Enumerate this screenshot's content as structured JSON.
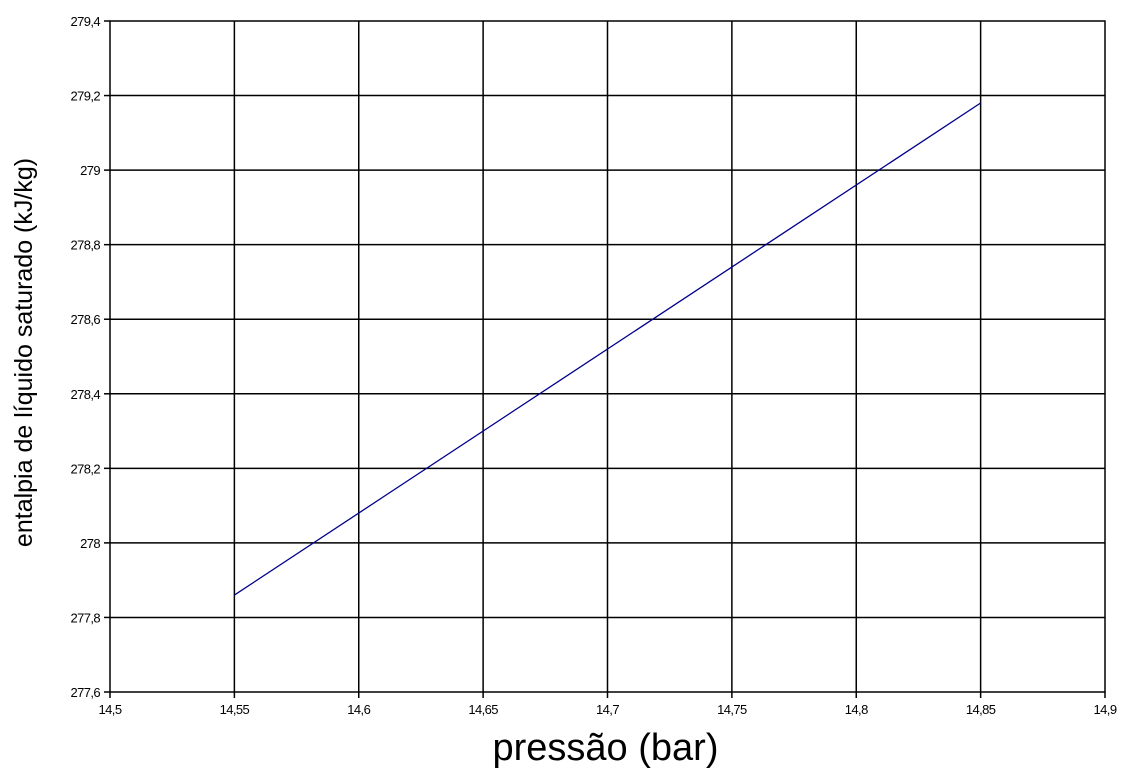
{
  "chart_data": {
    "type": "line",
    "title": "",
    "xlabel": "pressão (bar)",
    "ylabel": "entalpia de líquido saturado (kJ/kg)",
    "xlim": [
      14.5,
      14.9
    ],
    "ylim": [
      277.6,
      279.4
    ],
    "x_ticks": [
      14.5,
      14.55,
      14.6,
      14.65,
      14.7,
      14.75,
      14.8,
      14.85,
      14.9
    ],
    "x_tick_labels": [
      "14,5",
      "14,55",
      "14,6",
      "14,65",
      "14,7",
      "14,75",
      "14,8",
      "14,85",
      "14,9"
    ],
    "y_ticks": [
      277.6,
      277.8,
      278,
      278.2,
      278.4,
      278.6,
      278.8,
      279,
      279.2,
      279.4
    ],
    "y_tick_labels": [
      "277,6",
      "277,8",
      "278",
      "278,2",
      "278,4",
      "278,6",
      "278,8",
      "279",
      "279,2",
      "279,4"
    ],
    "grid": true,
    "legend": "none",
    "series": [
      {
        "color": "#00008b",
        "x": [
          14.55,
          14.85
        ],
        "y": [
          277.86,
          279.18
        ]
      }
    ]
  }
}
